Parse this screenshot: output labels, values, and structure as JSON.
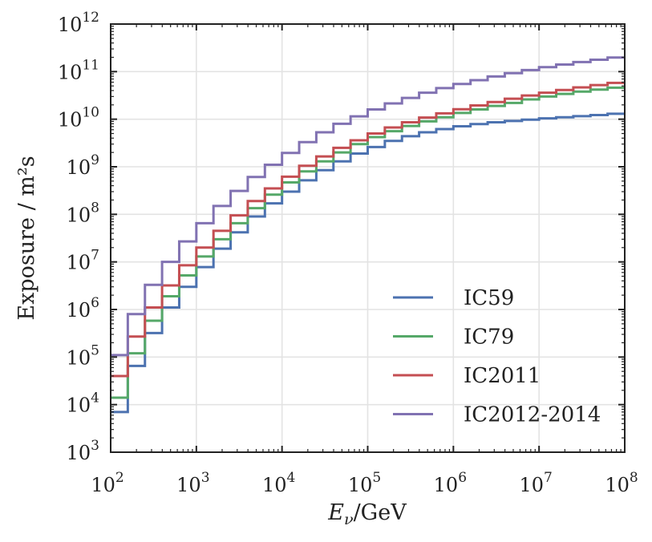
{
  "chart_data": {
    "type": "line",
    "step": true,
    "x_scale": "log",
    "y_scale": "log",
    "xlabel_base": "E",
    "xlabel_sub": "ν",
    "xlabel_unit": "/GeV",
    "ylabel": "Exposure / m²s",
    "xlim": [
      100,
      100000000
    ],
    "ylim": [
      1000,
      1000000000000
    ],
    "x_ticks": [
      {
        "base": "10",
        "exp": "2"
      },
      {
        "base": "10",
        "exp": "3"
      },
      {
        "base": "10",
        "exp": "4"
      },
      {
        "base": "10",
        "exp": "5"
      },
      {
        "base": "10",
        "exp": "6"
      },
      {
        "base": "10",
        "exp": "7"
      },
      {
        "base": "10",
        "exp": "8"
      }
    ],
    "y_ticks": [
      {
        "base": "10",
        "exp": "3"
      },
      {
        "base": "10",
        "exp": "4"
      },
      {
        "base": "10",
        "exp": "5"
      },
      {
        "base": "10",
        "exp": "6"
      },
      {
        "base": "10",
        "exp": "7"
      },
      {
        "base": "10",
        "exp": "8"
      },
      {
        "base": "10",
        "exp": "9"
      },
      {
        "base": "10",
        "exp": "10"
      },
      {
        "base": "10",
        "exp": "11"
      },
      {
        "base": "10",
        "exp": "12"
      }
    ],
    "grid": true,
    "legend_position": "lower-right",
    "bin_edges": [
      100,
      158.5,
      251.2,
      398.1,
      631,
      1000,
      1585,
      2512,
      3981,
      6310,
      10000,
      15850,
      25120,
      39810,
      63100,
      100000,
      158500,
      251200,
      398100,
      631000,
      1000000,
      1585000,
      2512000,
      3981000,
      6310000,
      10000000,
      15850000,
      25120000,
      39810000,
      63100000,
      100000000
    ],
    "series": [
      {
        "name": "IC59",
        "color": "#4c72b0",
        "values": [
          7000,
          65000,
          320000,
          1100000,
          3000000,
          7800000,
          19000000,
          42000000,
          90000000,
          170000000,
          300000000,
          520000000,
          850000000,
          1300000000,
          1900000000,
          2600000000,
          3500000000,
          4400000000,
          5300000000,
          6200000000,
          7100000000,
          7900000000,
          8600000000,
          9200000000,
          9800000000,
          10400000000,
          11000000000,
          11600000000,
          12200000000,
          13000000000
        ]
      },
      {
        "name": "IC79",
        "color": "#55a868",
        "values": [
          14000,
          120000,
          580000,
          1900000,
          5200000,
          13000000,
          30000000,
          65000000,
          135000000,
          260000000,
          470000000,
          800000000,
          1300000000,
          2000000000,
          3000000000,
          4200000000,
          5600000000,
          7200000000,
          9000000000,
          11000000000,
          13500000000,
          16000000000,
          19000000000,
          22000000000,
          26000000000,
          30000000000,
          34000000000,
          38000000000,
          42000000000,
          46000000000
        ]
      },
      {
        "name": "IC2011",
        "color": "#c44e52",
        "values": [
          40000,
          270000,
          1100000,
          3200000,
          8500000,
          20000000,
          45000000,
          95000000,
          190000000,
          350000000,
          620000000,
          1050000000,
          1650000000,
          2500000000,
          3600000000,
          5000000000,
          6700000000,
          8600000000,
          10800000000,
          13300000000,
          16200000000,
          19500000000,
          23000000000,
          27000000000,
          31500000000,
          36000000000,
          41000000000,
          46500000000,
          52000000000,
          58000000000
        ]
      },
      {
        "name": "IC2012-2014",
        "color": "#8172b2",
        "values": [
          110000,
          800000,
          3300000,
          10000000,
          27000000,
          65000000,
          150000000,
          310000000,
          610000000,
          1100000000,
          1950000000,
          3300000000,
          5300000000,
          8000000000,
          11500000000,
          16000000000,
          21500000000,
          28000000000,
          36000000000,
          45000000000,
          55000000000,
          66000000000,
          79000000000,
          93000000000,
          108000000000,
          124000000000,
          141000000000,
          159000000000,
          178000000000,
          198000000000
        ]
      }
    ]
  }
}
